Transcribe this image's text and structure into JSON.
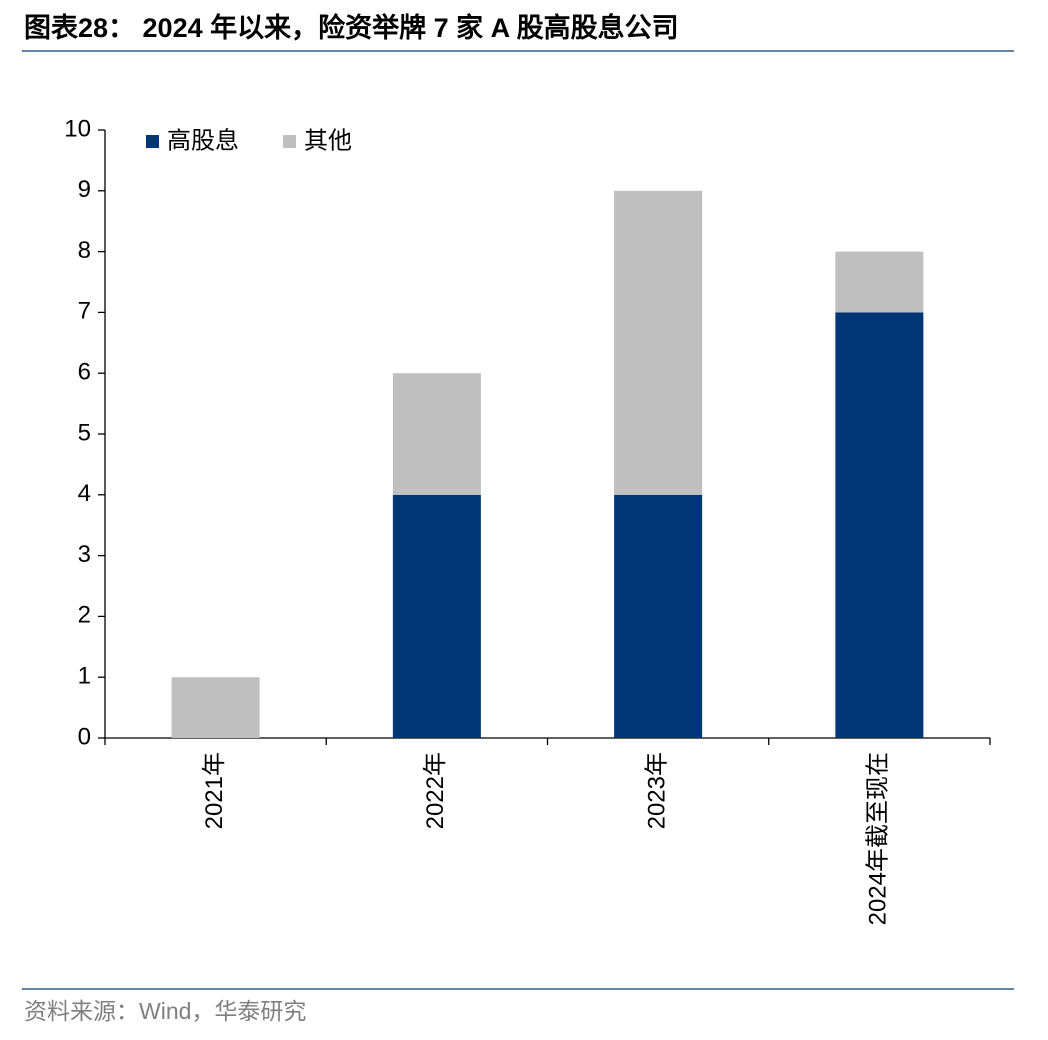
{
  "chart_data": {
    "type": "stacked_bar",
    "title": "图表28： 2024 年以来，险资举牌 7 家 A 股高股息公司",
    "source": "资料来源：Wind，华泰研究",
    "categories": [
      "2021年",
      "2022年",
      "2023年",
      "2024年截至现在"
    ],
    "series": [
      {
        "name": "高股息",
        "color": "#003676",
        "values": [
          0,
          4,
          4,
          7
        ]
      },
      {
        "name": "其他",
        "color": "#bfbfbf",
        "values": [
          1,
          2,
          5,
          1
        ]
      }
    ],
    "ylim": [
      0,
      10
    ],
    "yticks": [
      0,
      1,
      2,
      3,
      4,
      5,
      6,
      7,
      8,
      9,
      10
    ],
    "legend": "top-left"
  }
}
